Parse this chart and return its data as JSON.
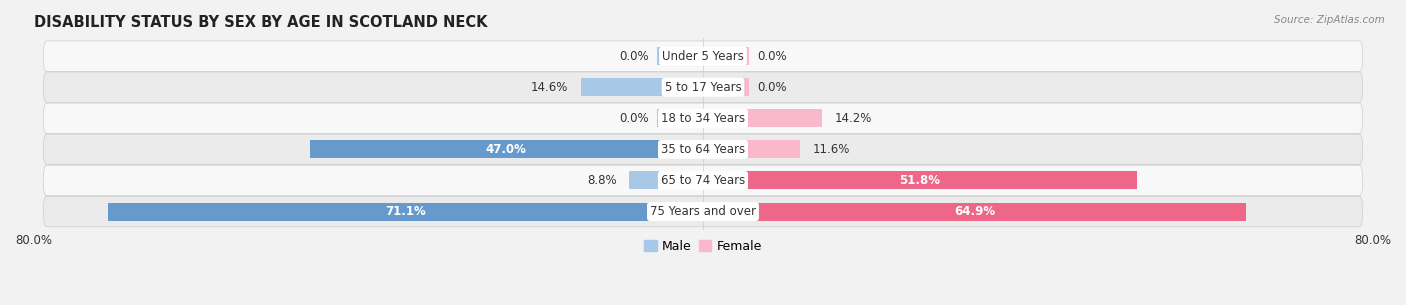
{
  "title": "DISABILITY STATUS BY SEX BY AGE IN SCOTLAND NECK",
  "source": "Source: ZipAtlas.com",
  "categories": [
    "Under 5 Years",
    "5 to 17 Years",
    "18 to 34 Years",
    "35 to 64 Years",
    "65 to 74 Years",
    "75 Years and over"
  ],
  "male_values": [
    0.0,
    14.6,
    0.0,
    47.0,
    8.8,
    71.1
  ],
  "female_values": [
    0.0,
    0.0,
    14.2,
    11.6,
    51.8,
    64.9
  ],
  "male_color_light": "#a8c8e8",
  "male_color_dark": "#6699cc",
  "female_color_light": "#f9b8cb",
  "female_color_dark": "#ee6688",
  "male_label": "Male",
  "female_label": "Female",
  "xlim": 80.0,
  "bar_height": 0.58,
  "title_fontsize": 10.5,
  "value_fontsize": 8.5,
  "cat_fontsize": 8.5,
  "axis_label_fontsize": 8.5,
  "legend_fontsize": 9,
  "inside_threshold": 40.0,
  "zero_stub": 5.5
}
